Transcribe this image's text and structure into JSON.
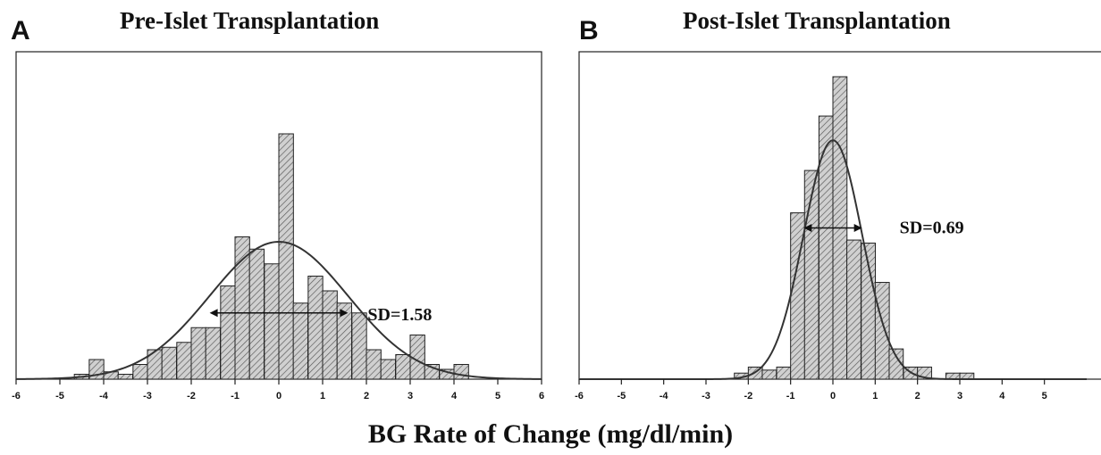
{
  "xlabel": "BG Rate of Change (mg/dl/min)",
  "colors": {
    "bar_fill": "#d0d0d0",
    "hatch": "#555555",
    "outline": "#222222",
    "curve": "#333333"
  },
  "chart_data": [
    {
      "type": "bar",
      "panel_letter": "A",
      "title": "Pre-Islet Transplantation",
      "xlim": [
        -6,
        6
      ],
      "ylim": [
        0,
        1
      ],
      "x_ticks": [
        -6,
        -5,
        -4,
        -3,
        -2,
        -1,
        0,
        1,
        2,
        3,
        4,
        5,
        6
      ],
      "bin_width": 0.3333,
      "bin_starts": [
        -4.67,
        -4.33,
        -4.0,
        -3.67,
        -3.33,
        -3.0,
        -2.67,
        -2.33,
        -2.0,
        -1.67,
        -1.33,
        -1.0,
        -0.67,
        -0.33,
        0.0,
        0.33,
        0.67,
        1.0,
        1.33,
        1.67,
        2.0,
        2.33,
        2.67,
        3.0,
        3.33,
        3.67,
        4.0
      ],
      "values": [
        0.02,
        0.08,
        0.03,
        0.02,
        0.06,
        0.12,
        0.13,
        0.15,
        0.21,
        0.21,
        0.38,
        0.58,
        0.53,
        0.47,
        1.0,
        0.31,
        0.42,
        0.36,
        0.31,
        0.27,
        0.12,
        0.08,
        0.1,
        0.18,
        0.06,
        0.04,
        0.06
      ],
      "normal_fit": {
        "mean": 0.0,
        "sd": 1.58,
        "peak": 0.56
      },
      "sd_arrow": {
        "from": -1.58,
        "to": 1.58,
        "at": 0.27
      },
      "annotation": "SD=1.58"
    },
    {
      "type": "bar",
      "panel_letter": "B",
      "title": "Post-Islet Transplantation",
      "xlim": [
        -6,
        6
      ],
      "ylim": [
        0,
        1
      ],
      "x_ticks": [
        -6,
        -5,
        -4,
        -3,
        -2,
        -1,
        0,
        1,
        2,
        3,
        4,
        5
      ],
      "bin_width": 0.3333,
      "bin_starts": [
        -2.33,
        -2.0,
        -1.67,
        -1.33,
        -1.0,
        -0.67,
        -0.33,
        0.0,
        0.33,
        0.67,
        1.0,
        1.33,
        1.67,
        2.0,
        2.33,
        2.67,
        3.0
      ],
      "values": [
        0.02,
        0.04,
        0.03,
        0.04,
        0.55,
        0.69,
        0.87,
        1.0,
        0.46,
        0.45,
        0.32,
        0.1,
        0.04,
        0.04,
        0.0,
        0.02,
        0.02
      ],
      "normal_fit": {
        "mean": 0.0,
        "sd": 0.69,
        "peak": 0.79
      },
      "sd_arrow": {
        "from": -0.69,
        "to": 0.69,
        "at": 0.5
      },
      "annotation": "SD=0.69"
    }
  ]
}
